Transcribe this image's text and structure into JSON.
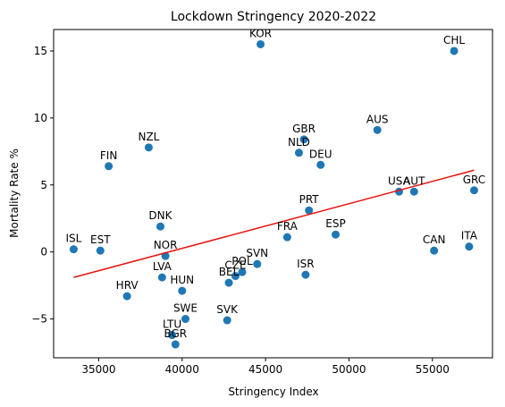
{
  "chart_data": {
    "type": "scatter",
    "title": "Lockdown Stringency 2020-2022",
    "xlabel": "Stringency Index",
    "ylabel": "Mortality Rate %",
    "xlim": [
      32300,
      58600
    ],
    "ylim": [
      -7.9,
      16.6
    ],
    "xticks": [
      35000,
      40000,
      45000,
      50000,
      55000
    ],
    "yticks": [
      -5,
      0,
      5,
      10,
      15
    ],
    "grid": false,
    "point_color": "#1f77b4",
    "trend_color": "#e8130f",
    "points": [
      {
        "label": "KOR",
        "x": 44700,
        "y": 15.5
      },
      {
        "label": "CHL",
        "x": 56300,
        "y": 15.0
      },
      {
        "label": "GBR",
        "x": 47300,
        "y": 8.4
      },
      {
        "label": "AUS",
        "x": 51700,
        "y": 9.1
      },
      {
        "label": "NZL",
        "x": 38000,
        "y": 7.8
      },
      {
        "label": "NLD",
        "x": 47000,
        "y": 7.4
      },
      {
        "label": "DEU",
        "x": 48300,
        "y": 6.5
      },
      {
        "label": "FIN",
        "x": 35600,
        "y": 6.4
      },
      {
        "label": "USA",
        "x": 53000,
        "y": 4.5
      },
      {
        "label": "AUT",
        "x": 53900,
        "y": 4.5
      },
      {
        "label": "GRC",
        "x": 57500,
        "y": 4.6
      },
      {
        "label": "PRT",
        "x": 47600,
        "y": 3.1
      },
      {
        "label": "DNK",
        "x": 38700,
        "y": 1.9
      },
      {
        "label": "ESP",
        "x": 49200,
        "y": 1.3
      },
      {
        "label": "FRA",
        "x": 46300,
        "y": 1.1
      },
      {
        "label": "ISL",
        "x": 33500,
        "y": 0.2
      },
      {
        "label": "EST",
        "x": 35100,
        "y": 0.1
      },
      {
        "label": "CAN",
        "x": 55100,
        "y": 0.1
      },
      {
        "label": "ITA",
        "x": 57200,
        "y": 0.4
      },
      {
        "label": "NOR",
        "x": 39000,
        "y": -0.3
      },
      {
        "label": "SVN",
        "x": 44500,
        "y": -0.9
      },
      {
        "label": "POL",
        "x": 43600,
        "y": -1.5
      },
      {
        "label": "CZE",
        "x": 43200,
        "y": -1.8
      },
      {
        "label": "ISR",
        "x": 47400,
        "y": -1.7
      },
      {
        "label": "LVA",
        "x": 38800,
        "y": -1.9
      },
      {
        "label": "BEL",
        "x": 42800,
        "y": -2.3
      },
      {
        "label": "HUN",
        "x": 40000,
        "y": -2.9
      },
      {
        "label": "HRV",
        "x": 36700,
        "y": -3.3
      },
      {
        "label": "SWE",
        "x": 40200,
        "y": -5.0
      },
      {
        "label": "SVK",
        "x": 42700,
        "y": -5.1
      },
      {
        "label": "LTU",
        "x": 39400,
        "y": -6.2
      },
      {
        "label": "BGR",
        "x": 39600,
        "y": -6.9
      }
    ],
    "trendline": {
      "x": [
        33500,
        57500
      ],
      "y": [
        -1.9,
        6.1
      ]
    }
  }
}
